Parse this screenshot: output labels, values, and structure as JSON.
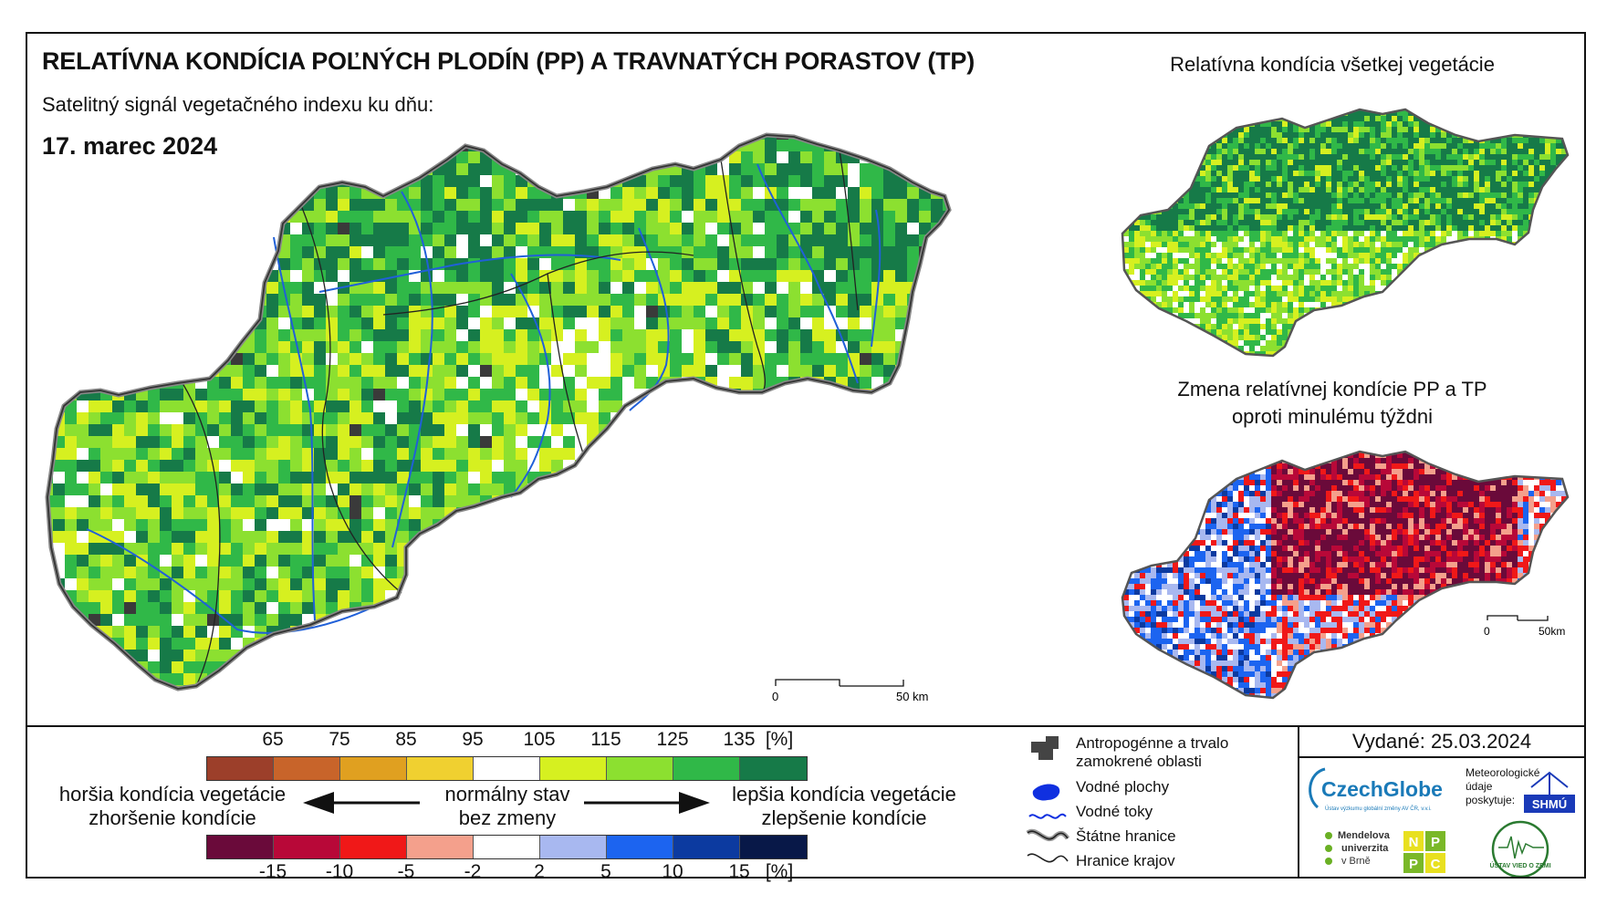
{
  "header": {
    "title": "RELATÍVNA KONDÍCIA POĽNÝCH PLODÍN (PP) A TRAVNATÝCH PORASTOV (TP)",
    "subtitle": "Satelitný signál vegetačného indexu ku dňu:",
    "date": "17. marec 2024"
  },
  "insets": {
    "all_vegetation_title": "Relatívna kondícia všetkej vegetácie",
    "change_title_line1": "Zmena relatívnej kondície PP a TP",
    "change_title_line2": "oproti minulému týždni"
  },
  "scalebars": {
    "main": {
      "start": "0",
      "end": "50 km"
    },
    "inset": {
      "start": "0",
      "end": "50km"
    }
  },
  "legend": {
    "condition_ticks": [
      "65",
      "75",
      "85",
      "95",
      "105",
      "115",
      "125",
      "135",
      "[%]"
    ],
    "condition_colors": [
      "#9c3f2a",
      "#c8642a",
      "#e0a020",
      "#f0d030",
      "#ffffff",
      "#d6f020",
      "#8ce030",
      "#30b848",
      "#167a48"
    ],
    "change_ticks": [
      "-15",
      "-10",
      "-5",
      "-2",
      "2",
      "5",
      "10",
      "15",
      "[%]"
    ],
    "change_colors": [
      "#6a0a3a",
      "#b80838",
      "#f01818",
      "#f4a08c",
      "#ffffff",
      "#a8b8f0",
      "#1c64f0",
      "#0c3aa0",
      "#081848"
    ],
    "left_label_1": "horšia kondícia vegetácie",
    "left_label_2": "zhoršenie kondície",
    "center_label_1": "normálny stav",
    "center_label_2": "bez zmeny",
    "right_label_1": "lepšia kondícia vegetácie",
    "right_label_2": "zlepšenie kondície"
  },
  "map_legend": {
    "anthropogenic": "Antropogénne a trvalo zamokrené oblasti",
    "anthropogenic_line1": "Antropogénne a trvalo",
    "anthropogenic_line2": "zamokrené oblasti",
    "water_areas": "Vodné plochy",
    "rivers": "Vodné toky",
    "state_border": "Štátne hranice",
    "region_border": "Hranice krajov"
  },
  "issued": "Vydané: 25.03.2024",
  "logos": {
    "czechglobe": "CzechGlobe",
    "czechglobe_sub": "Ústav výzkumu globální změny AV ČR, v.v.i.",
    "meteo_line1": "Meteorologické",
    "meteo_line2": "údaje",
    "meteo_line3": "poskytuje:",
    "shmu": "SHMÚ",
    "mendel_1": "Mendelova",
    "mendel_2": "univerzita",
    "mendel_3": "v Brně",
    "nppc": [
      "N",
      "P",
      "P",
      "C"
    ],
    "uvz": "ÚSTAV VIED O ZEMI"
  }
}
